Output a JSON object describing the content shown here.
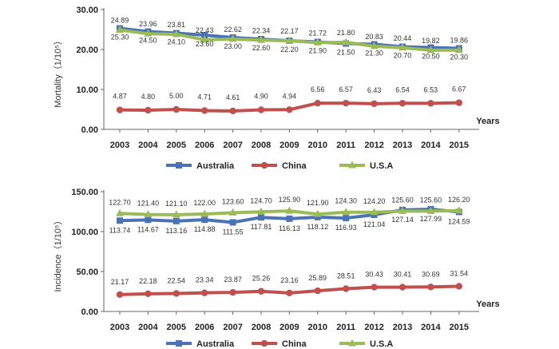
{
  "chart_data": [
    {
      "type": "line",
      "ylabel": "Mortality（1/10⁵）",
      "xlabel": "Years",
      "ylim": [
        0,
        30
      ],
      "yticks": [
        "0.00",
        "10.00",
        "20.00",
        "30.00"
      ],
      "categories": [
        "2003",
        "2004",
        "2005",
        "2006",
        "2007",
        "2008",
        "2009",
        "2010",
        "2011",
        "2012",
        "2013",
        "2014",
        "2015"
      ],
      "series": [
        {
          "name": "Australia",
          "color": "#4a73b5",
          "marker": "square",
          "values": [
            25.3,
            24.5,
            24.1,
            23.6,
            23.0,
            22.6,
            22.2,
            21.9,
            21.5,
            21.3,
            20.7,
            20.5,
            20.3
          ],
          "labels": [
            "25.30",
            "24.50",
            "24.10",
            "23.60",
            "23.00",
            "22.60",
            "22.20",
            "21.90",
            "21.50",
            "21.30",
            "20.70",
            "20.50",
            "20.30"
          ]
        },
        {
          "name": "China",
          "color": "#c0504d",
          "marker": "circle",
          "values": [
            4.87,
            4.8,
            5.0,
            4.71,
            4.61,
            4.9,
            4.94,
            6.56,
            6.57,
            6.43,
            6.54,
            6.53,
            6.67
          ],
          "labels": [
            "4.87",
            "4.80",
            "5.00",
            "4.71",
            "4.61",
            "4.90",
            "4.94",
            "6.56",
            "6.57",
            "6.43",
            "6.54",
            "6.53",
            "6.67"
          ]
        },
        {
          "name": "U.S.A",
          "color": "#9bbb59",
          "marker": "triangle",
          "values": [
            24.89,
            23.96,
            23.81,
            22.43,
            22.62,
            22.34,
            22.17,
            21.72,
            21.8,
            20.83,
            20.44,
            19.82,
            19.86
          ],
          "labels": [
            "24.89",
            "23.96",
            "23.81",
            "22.43",
            "22.62",
            "22.34",
            "22.17",
            "21.72",
            "21.80",
            "20.83",
            "20.44",
            "19.82",
            "19.86"
          ]
        }
      ],
      "legend": "bottom"
    },
    {
      "type": "line",
      "ylabel": "Incidence（1/10⁵）",
      "xlabel": "Years",
      "ylim": [
        0,
        150
      ],
      "yticks": [
        "0.00",
        "50.00",
        "100.00",
        "150.00"
      ],
      "categories": [
        "2003",
        "2004",
        "2005",
        "2006",
        "2007",
        "2008",
        "2009",
        "2010",
        "2011",
        "2012",
        "2013",
        "2014",
        "2015"
      ],
      "series": [
        {
          "name": "Australia",
          "color": "#4a73b5",
          "marker": "square",
          "values": [
            113.74,
            114.67,
            113.16,
            114.88,
            111.55,
            117.81,
            116.13,
            118.12,
            116.93,
            121.04,
            127.14,
            127.99,
            124.59
          ],
          "labels": [
            "113.74",
            "114.67",
            "113.16",
            "114.88",
            "111.55",
            "117.81",
            "116.13",
            "118.12",
            "116.93",
            "121.04",
            "127.14",
            "127.99",
            "124.59"
          ]
        },
        {
          "name": "China",
          "color": "#c0504d",
          "marker": "circle",
          "values": [
            21.17,
            22.18,
            22.54,
            23.34,
            23.87,
            25.26,
            23.16,
            25.89,
            28.51,
            30.43,
            30.41,
            30.69,
            31.54
          ],
          "labels": [
            "21.17",
            "22.18",
            "22.54",
            "23.34",
            "23.87",
            "25.26",
            "23.16",
            "25.89",
            "28.51",
            "30.43",
            "30.41",
            "30.69",
            "31.54"
          ]
        },
        {
          "name": "U.S.A",
          "color": "#9bbb59",
          "marker": "triangle",
          "values": [
            122.7,
            121.4,
            121.1,
            122.0,
            123.6,
            124.7,
            125.9,
            121.9,
            124.3,
            124.2,
            125.6,
            125.6,
            126.2
          ],
          "labels": [
            "122.70",
            "121.40",
            "121.10",
            "122.00",
            "123.60",
            "124.70",
            "125.90",
            "121.90",
            "124.30",
            "124.20",
            "125.60",
            "125.60",
            "126.20"
          ]
        }
      ],
      "legend": "bottom"
    }
  ]
}
